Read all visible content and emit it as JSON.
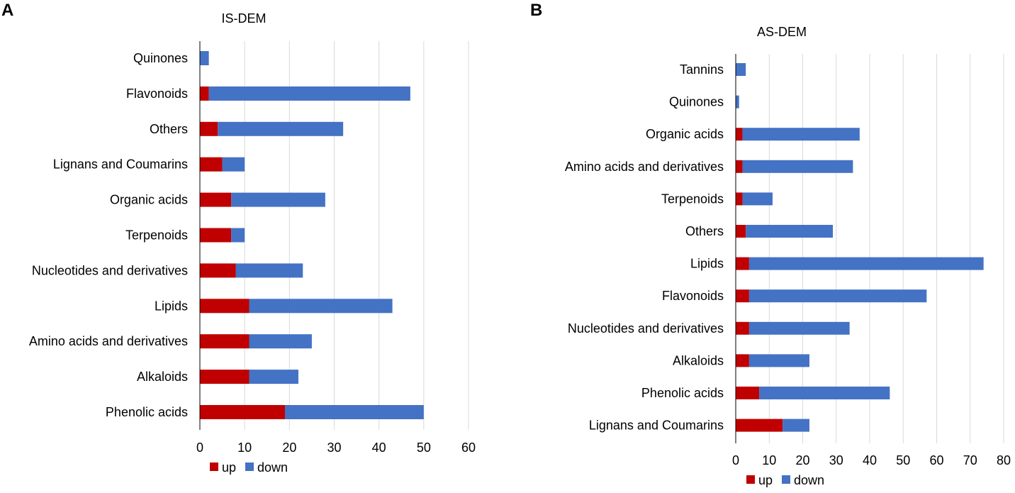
{
  "colors": {
    "up": "#c00000",
    "down": "#4472c4",
    "grid": "#d9d9d9",
    "axis": "#000000",
    "text": "#000000"
  },
  "chart_data": [
    {
      "panel_label": "A",
      "type": "bar",
      "orientation": "horizontal",
      "stacked": true,
      "title": "IS-DEM",
      "categories": [
        "Quinones",
        "Flavonoids",
        "Others",
        "Lignans and Coumarins",
        "Organic acids",
        "Terpenoids",
        "Nucleotides and derivatives",
        "Lipids",
        "Amino acids and derivatives",
        "Alkaloids",
        "Phenolic acids"
      ],
      "series": [
        {
          "name": "up",
          "values": [
            0,
            2,
            4,
            5,
            7,
            7,
            8,
            11,
            11,
            11,
            19
          ]
        },
        {
          "name": "down",
          "values": [
            2,
            45,
            28,
            5,
            21,
            3,
            15,
            32,
            14,
            11,
            31
          ]
        }
      ],
      "xlim": [
        0,
        60
      ],
      "xticks": [
        0,
        10,
        20,
        30,
        40,
        50,
        60
      ],
      "grid": true,
      "legend": [
        "up",
        "down"
      ],
      "legend_position": "bottom"
    },
    {
      "panel_label": "B",
      "type": "bar",
      "orientation": "horizontal",
      "stacked": true,
      "title": "AS-DEM",
      "categories": [
        "Tannins",
        "Quinones",
        "Organic acids",
        "Amino acids and derivatives",
        "Terpenoids",
        "Others",
        "Lipids",
        "Flavonoids",
        "Nucleotides and derivatives",
        "Alkaloids",
        "Phenolic acids",
        "Lignans and Coumarins"
      ],
      "series": [
        {
          "name": "up",
          "values": [
            0,
            0,
            2,
            2,
            2,
            3,
            4,
            4,
            4,
            4,
            7,
            14
          ]
        },
        {
          "name": "down",
          "values": [
            3,
            1,
            35,
            33,
            9,
            26,
            70,
            53,
            30,
            18,
            39,
            8
          ]
        }
      ],
      "xlim": [
        0,
        80
      ],
      "xticks": [
        0,
        10,
        20,
        30,
        40,
        50,
        60,
        70,
        80
      ],
      "grid": true,
      "legend": [
        "up",
        "down"
      ],
      "legend_position": "bottom"
    }
  ]
}
